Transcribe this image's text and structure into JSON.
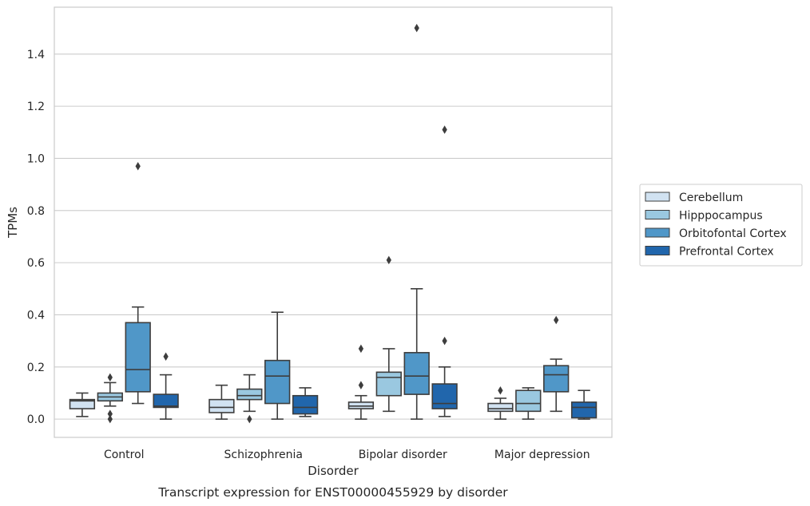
{
  "caption": "Transcript expression for ENST00000455929 by disorder",
  "chart_data": {
    "type": "box",
    "title": "",
    "xlabel": "Disorder",
    "ylabel": "TPMs",
    "categories": [
      "Control",
      "Schizophrenia",
      "Bipolar disorder",
      "Major depression"
    ],
    "ylim": [
      -0.07,
      1.58
    ],
    "yticks": [
      "0.0",
      "0.2",
      "0.4",
      "0.6",
      "0.8",
      "1.0",
      "1.2",
      "1.4"
    ],
    "grid": true,
    "legend_position": "right",
    "series": [
      {
        "name": "Cerebellum",
        "color": "#d1e2f1",
        "boxes": [
          {
            "whislo": 0.01,
            "q1": 0.04,
            "med": 0.07,
            "q3": 0.075,
            "whishi": 0.1,
            "fliers": []
          },
          {
            "whislo": 0.0,
            "q1": 0.025,
            "med": 0.045,
            "q3": 0.075,
            "whishi": 0.13,
            "fliers": []
          },
          {
            "whislo": 0.0,
            "q1": 0.04,
            "med": 0.05,
            "q3": 0.065,
            "whishi": 0.09,
            "fliers": [
              0.13,
              0.27
            ]
          },
          {
            "whislo": 0.0,
            "q1": 0.03,
            "med": 0.04,
            "q3": 0.06,
            "whishi": 0.08,
            "fliers": [
              0.11
            ]
          }
        ]
      },
      {
        "name": "Hipppocampus",
        "color": "#9ac8e0",
        "boxes": [
          {
            "whislo": 0.05,
            "q1": 0.07,
            "med": 0.085,
            "q3": 0.1,
            "whishi": 0.14,
            "fliers": [
              0.16,
              0.02,
              0.0
            ]
          },
          {
            "whislo": 0.03,
            "q1": 0.075,
            "med": 0.09,
            "q3": 0.115,
            "whishi": 0.17,
            "fliers": [
              0.0
            ]
          },
          {
            "whislo": 0.03,
            "q1": 0.09,
            "med": 0.16,
            "q3": 0.18,
            "whishi": 0.27,
            "fliers": [
              0.61
            ]
          },
          {
            "whislo": 0.0,
            "q1": 0.03,
            "med": 0.06,
            "q3": 0.11,
            "whishi": 0.12,
            "fliers": []
          }
        ]
      },
      {
        "name": "Orbitofontal Cortex",
        "color": "#5097c8",
        "boxes": [
          {
            "whislo": 0.06,
            "q1": 0.105,
            "med": 0.19,
            "q3": 0.37,
            "whishi": 0.43,
            "fliers": [
              0.97
            ]
          },
          {
            "whislo": 0.0,
            "q1": 0.06,
            "med": 0.165,
            "q3": 0.225,
            "whishi": 0.41,
            "fliers": []
          },
          {
            "whislo": 0.0,
            "q1": 0.095,
            "med": 0.165,
            "q3": 0.255,
            "whishi": 0.5,
            "fliers": [
              1.5
            ]
          },
          {
            "whislo": 0.03,
            "q1": 0.105,
            "med": 0.17,
            "q3": 0.205,
            "whishi": 0.23,
            "fliers": [
              0.38
            ]
          }
        ]
      },
      {
        "name": "Prefrontal Cortex",
        "color": "#2166ac",
        "boxes": [
          {
            "whislo": 0.0,
            "q1": 0.045,
            "med": 0.05,
            "q3": 0.095,
            "whishi": 0.17,
            "fliers": [
              0.24
            ]
          },
          {
            "whislo": 0.01,
            "q1": 0.02,
            "med": 0.045,
            "q3": 0.09,
            "whishi": 0.12,
            "fliers": []
          },
          {
            "whislo": 0.01,
            "q1": 0.04,
            "med": 0.06,
            "q3": 0.135,
            "whishi": 0.2,
            "fliers": [
              0.3,
              1.11
            ]
          },
          {
            "whislo": 0.0,
            "q1": 0.005,
            "med": 0.045,
            "q3": 0.065,
            "whishi": 0.11,
            "fliers": []
          }
        ]
      }
    ]
  }
}
